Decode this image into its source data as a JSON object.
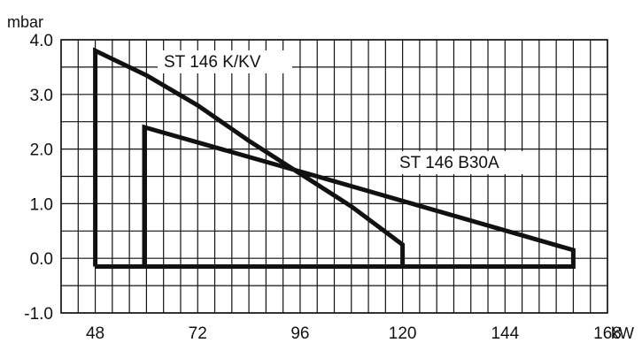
{
  "chart_data": {
    "type": "line",
    "title": "",
    "ylabel": "mbar",
    "xlabel": "kW",
    "xlim": [
      40,
      168
    ],
    "ylim": [
      -1.0,
      4.0
    ],
    "x_ticks": [
      {
        "value": 48,
        "label": "48"
      },
      {
        "value": 72,
        "label": "72"
      },
      {
        "value": 96,
        "label": "96"
      },
      {
        "value": 120,
        "label": "120"
      },
      {
        "value": 144,
        "label": "144"
      },
      {
        "value": 168,
        "label": "168"
      }
    ],
    "y_ticks": [
      {
        "value": 4.0,
        "label": "4.0"
      },
      {
        "value": 3.0,
        "label": "3.0"
      },
      {
        "value": 2.0,
        "label": "2.0"
      },
      {
        "value": 1.0,
        "label": "1.0"
      },
      {
        "value": 0.0,
        "label": "0.0"
      },
      {
        "value": -1.0,
        "label": "-1.0"
      }
    ],
    "grid": true,
    "series": [
      {
        "name": "ST 146 K/KV",
        "points": [
          [
            48,
            -0.15
          ],
          [
            48,
            3.8
          ],
          [
            60,
            3.35
          ],
          [
            72,
            2.8
          ],
          [
            84,
            2.15
          ],
          [
            96,
            1.55
          ],
          [
            108,
            0.95
          ],
          [
            114,
            0.6
          ],
          [
            120,
            0.25
          ],
          [
            120,
            -0.15
          ],
          [
            48,
            -0.15
          ]
        ]
      },
      {
        "name": "ST 146 B30A",
        "points": [
          [
            59.5,
            -0.15
          ],
          [
            59.5,
            2.4
          ],
          [
            100,
            1.5
          ],
          [
            160,
            0.15
          ],
          [
            160,
            -0.15
          ],
          [
            59.5,
            -0.15
          ]
        ]
      }
    ]
  }
}
